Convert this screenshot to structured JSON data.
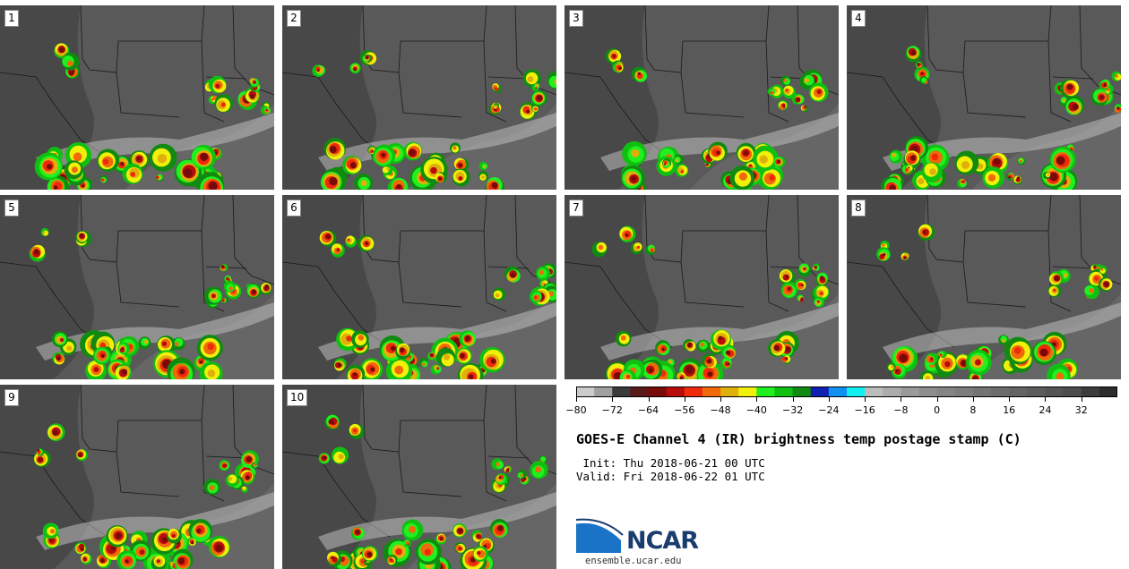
{
  "title": "GOES-E Channel 4 (IR) brightness temp postage stamp (C)",
  "init_line": " Init: Thu 2018-06-21 00 UTC",
  "valid_line": "Valid: Fri 2018-06-22 01 UTC",
  "logo": {
    "name": "NCAR",
    "url": "ensemble.ucar.edu"
  },
  "panels": [
    {
      "label": "1"
    },
    {
      "label": "2"
    },
    {
      "label": "3"
    },
    {
      "label": "4"
    },
    {
      "label": "5"
    },
    {
      "label": "6"
    },
    {
      "label": "7"
    },
    {
      "label": "8"
    },
    {
      "label": "9"
    },
    {
      "label": "10"
    }
  ],
  "colorbar": {
    "min": -80,
    "max": 40,
    "step": 4,
    "tick_labels": [
      "-80",
      "-72",
      "-64",
      "-56",
      "-48",
      "-40",
      "-32",
      "-24",
      "-16",
      "-8",
      "0",
      "8",
      "16",
      "24",
      "32"
    ],
    "tick_values": [
      -80,
      -72,
      -64,
      -56,
      -48,
      -40,
      -32,
      -24,
      -16,
      -8,
      0,
      8,
      16,
      24,
      32
    ],
    "colors": [
      "#cccccc",
      "#a0a0a0",
      "#3a3a3a",
      "#5a1a1a",
      "#7a0a0a",
      "#b80c0c",
      "#ee2a0a",
      "#f06a0a",
      "#e0b00a",
      "#f0f00a",
      "#20f020",
      "#10c010",
      "#108a10",
      "#1020b0",
      "#1090f0",
      "#10f0f0",
      "#bcbcbc",
      "#acacac",
      "#9a9a9a",
      "#8e8e8e",
      "#848484",
      "#7c7c7c",
      "#747474",
      "#6c6c6c",
      "#646464",
      "#5c5c5c",
      "#545454",
      "#4c4c4c",
      "#3c3c3c",
      "#2c2c2c"
    ]
  }
}
